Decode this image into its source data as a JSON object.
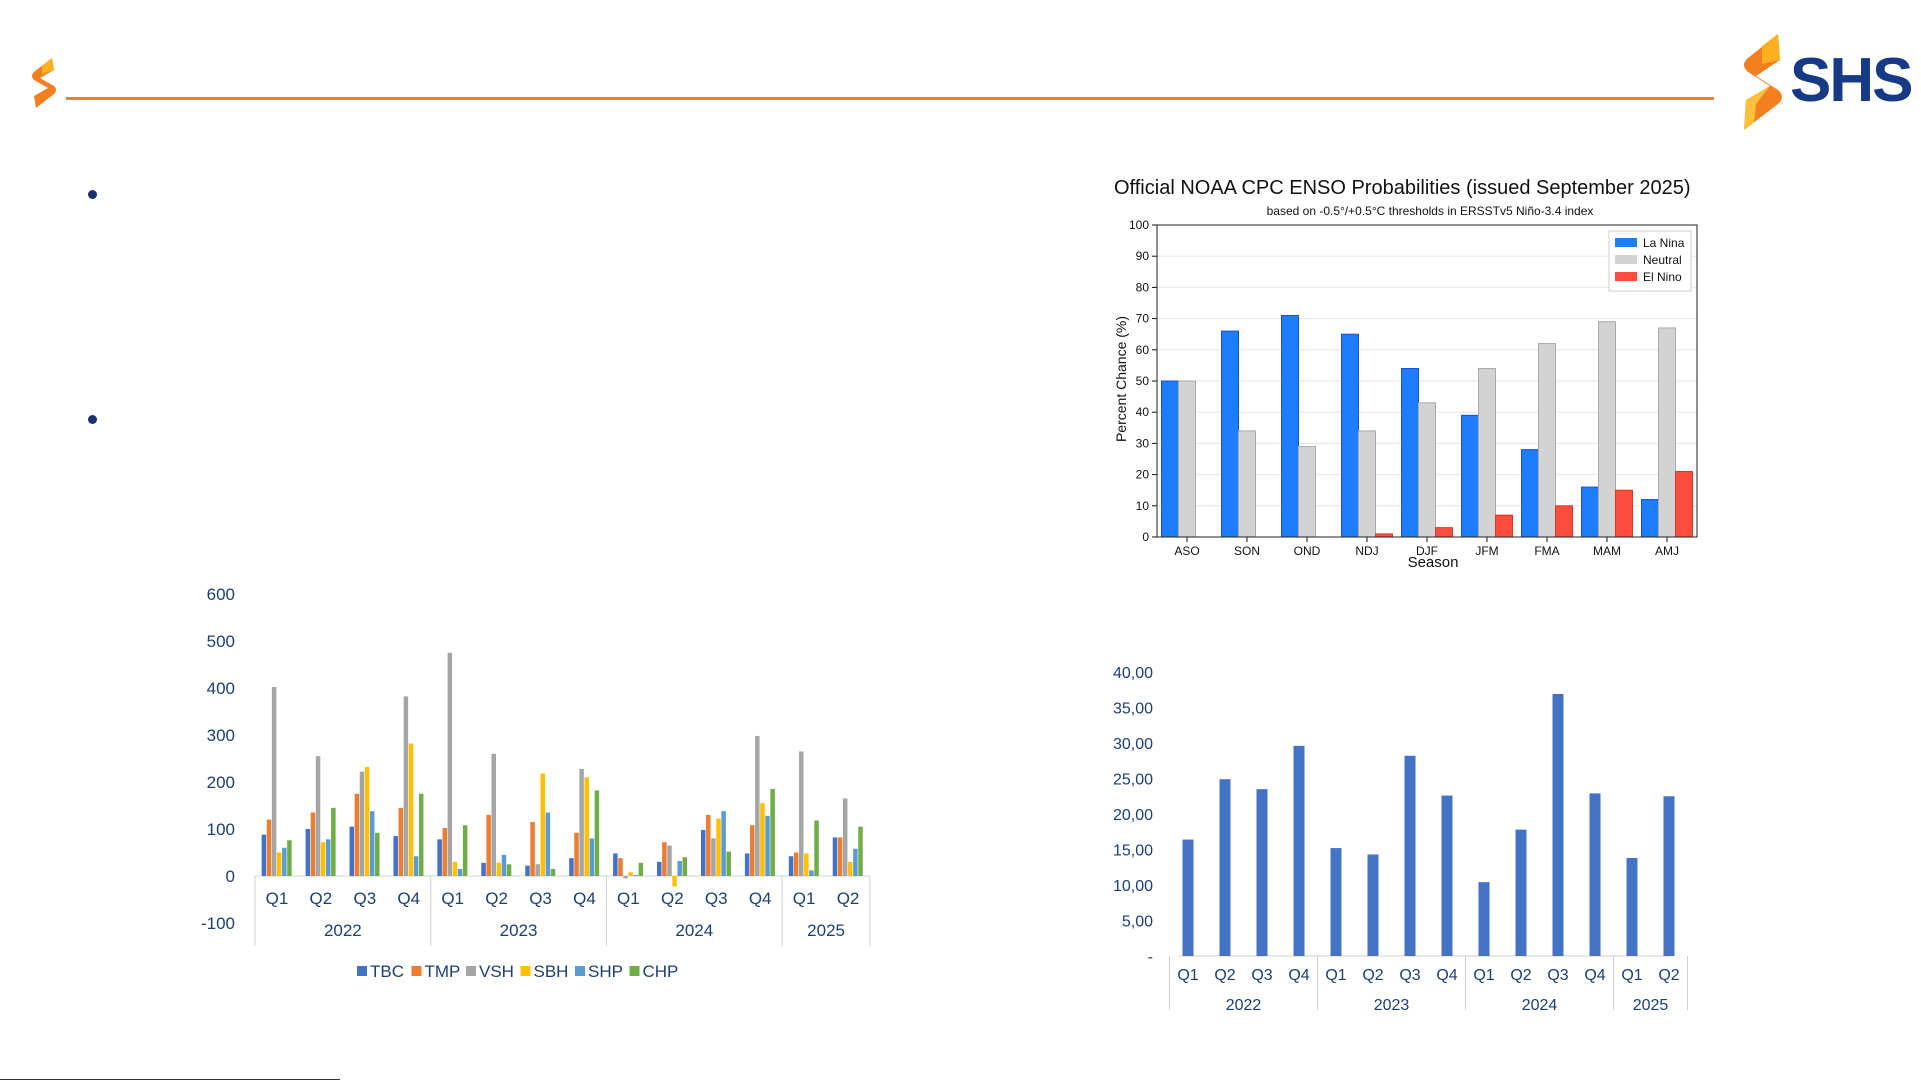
{
  "brand": {
    "name": "SHS",
    "primary_color": "#173a86",
    "accent_color": "#f47f20",
    "logo_icon": "flame-s-logo-icon"
  },
  "chart_data": [
    {
      "id": "enso",
      "type": "bar",
      "title": "Official NOAA CPC ENSO Probabilities (issued September 2025)",
      "subtitle": "based on -0.5°/+0.5°C thresholds in ERSSTv5 Niño-3.4 index",
      "xlabel": "Season",
      "ylabel": "Percent Chance (%)",
      "ylim": [
        0,
        100
      ],
      "yticks": [
        0,
        10,
        20,
        30,
        40,
        50,
        60,
        70,
        80,
        90,
        100
      ],
      "grid": true,
      "legend_position": "top-right",
      "categories": [
        "ASO",
        "SON",
        "OND",
        "NDJ",
        "DJF",
        "JFM",
        "FMA",
        "MAM",
        "AMJ"
      ],
      "series": [
        {
          "name": "La Nina",
          "color": "#1e7cff",
          "values": [
            50,
            66,
            71,
            65,
            54,
            39,
            28,
            16,
            12
          ]
        },
        {
          "name": "Neutral",
          "color": "#d3d3d3",
          "values": [
            50,
            34,
            29,
            34,
            43,
            54,
            62,
            69,
            67
          ]
        },
        {
          "name": "El Nino",
          "color": "#ff4d3d",
          "values": [
            0,
            0,
            0,
            1,
            3,
            7,
            10,
            15,
            21
          ]
        }
      ]
    },
    {
      "id": "profit",
      "type": "bar",
      "ylim": [
        -100,
        600
      ],
      "yticks": [
        -100,
        0,
        100,
        200,
        300,
        400,
        500,
        600
      ],
      "legend_position": "bottom",
      "quarters": [
        "Q1",
        "Q2",
        "Q3",
        "Q4",
        "Q1",
        "Q2",
        "Q3",
        "Q4",
        "Q1",
        "Q2",
        "Q3",
        "Q4",
        "Q1",
        "Q2"
      ],
      "years": [
        {
          "label": "2022",
          "span": 4
        },
        {
          "label": "2023",
          "span": 4
        },
        {
          "label": "2024",
          "span": 4
        },
        {
          "label": "2025",
          "span": 2
        }
      ],
      "series": [
        {
          "name": "TBC",
          "color": "#4472c4",
          "values": [
            88,
            100,
            105,
            85,
            78,
            28,
            22,
            38,
            48,
            30,
            98,
            48,
            42,
            82
          ]
        },
        {
          "name": "TMP",
          "color": "#ed7d31",
          "values": [
            120,
            135,
            175,
            145,
            102,
            130,
            115,
            92,
            38,
            72,
            130,
            108,
            50,
            82
          ]
        },
        {
          "name": "VSH",
          "color": "#a5a5a5",
          "values": [
            402,
            255,
            222,
            382,
            475,
            260,
            25,
            228,
            -5,
            65,
            80,
            298,
            265,
            165
          ]
        },
        {
          "name": "SBH",
          "color": "#ffc000",
          "values": [
            50,
            72,
            232,
            282,
            30,
            28,
            218,
            210,
            8,
            -22,
            122,
            155,
            48,
            30
          ]
        },
        {
          "name": "SHP",
          "color": "#5b9bd5",
          "values": [
            60,
            78,
            138,
            42,
            15,
            45,
            135,
            80,
            2,
            32,
            138,
            128,
            12,
            58
          ]
        },
        {
          "name": "CHP",
          "color": "#70ad47",
          "values": [
            76,
            145,
            92,
            175,
            108,
            25,
            15,
            182,
            28,
            40,
            52,
            185,
            118,
            105
          ]
        }
      ]
    },
    {
      "id": "ratio",
      "type": "bar",
      "ylim": [
        0,
        40
      ],
      "yticks": [
        "-",
        "5,00",
        "10,00",
        "15,00",
        "20,00",
        "25,00",
        "30,00",
        "35,00",
        "40,00"
      ],
      "quarters": [
        "Q1",
        "Q2",
        "Q3",
        "Q4",
        "Q1",
        "Q2",
        "Q3",
        "Q4",
        "Q1",
        "Q2",
        "Q3",
        "Q4",
        "Q1",
        "Q2"
      ],
      "years": [
        {
          "label": "2022",
          "span": 4
        },
        {
          "label": "2023",
          "span": 4
        },
        {
          "label": "2024",
          "span": 4
        },
        {
          "label": "2025",
          "span": 2
        }
      ],
      "series": [
        {
          "color": "#4472c4",
          "values": [
            16.4,
            24.9,
            23.5,
            29.6,
            15.2,
            14.3,
            28.2,
            22.6,
            10.4,
            17.8,
            36.9,
            22.9,
            13.8,
            22.5
          ]
        }
      ]
    }
  ]
}
